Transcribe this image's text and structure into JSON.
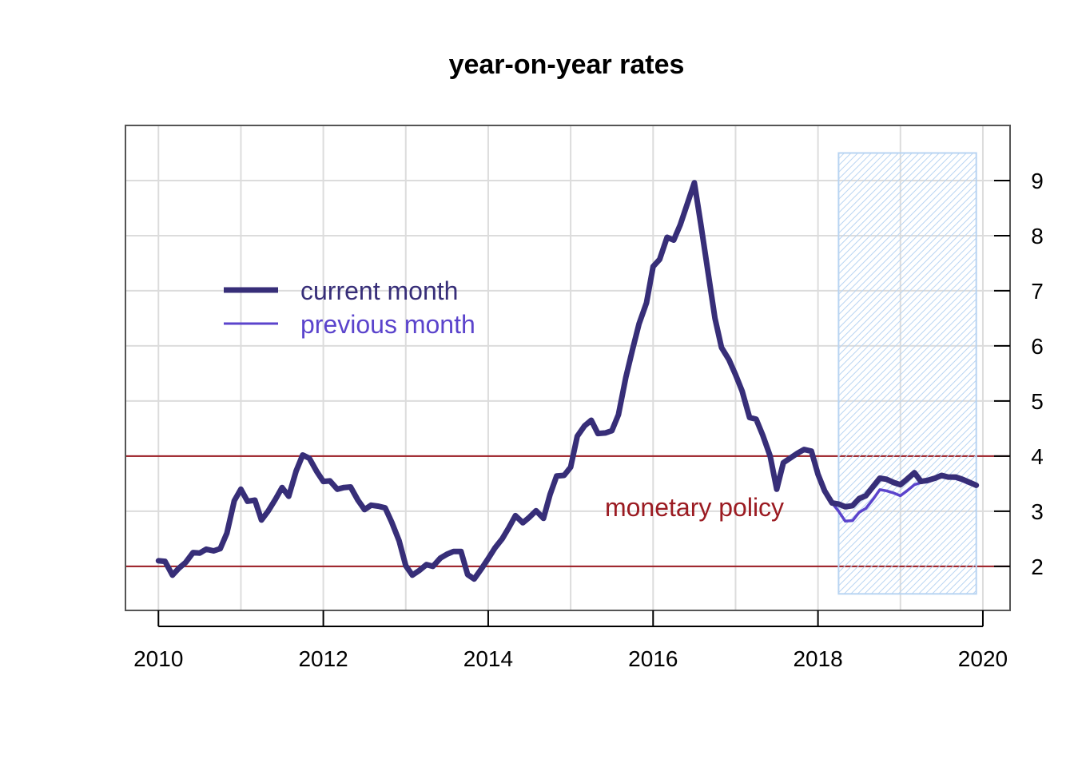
{
  "chart_data": {
    "type": "line",
    "title": "year-on-year rates",
    "xlabel": "",
    "ylabel": "",
    "x_ticks": [
      "2010",
      "2012",
      "2014",
      "2016",
      "2018",
      "2020"
    ],
    "y_ticks": [
      "2",
      "3",
      "4",
      "5",
      "6",
      "7",
      "8",
      "9"
    ],
    "xlim": [
      2009.6,
      2020.33
    ],
    "ylim": [
      1.2,
      10.0
    ],
    "grid": true,
    "y_axis_side": "right",
    "legend_position": "upper-left",
    "legend": [
      {
        "label": "current month",
        "color": "#372e78",
        "style": "thick"
      },
      {
        "label": "previous month",
        "color": "#5b44cc",
        "style": "thin"
      }
    ],
    "reference_lines": {
      "values": [
        2,
        4
      ],
      "color": "#9b1b22",
      "label": "monetary policy"
    },
    "forecast_region": {
      "x_start": 2018.25,
      "x_end": 2019.92,
      "y_start": 1.5,
      "y_end": 9.5,
      "color": "#b8d4f2"
    },
    "series": [
      {
        "name": "current month",
        "color": "#372e78",
        "points": [
          [
            2010.0,
            2.1
          ],
          [
            2010.08,
            2.09
          ],
          [
            2010.17,
            1.84
          ],
          [
            2010.25,
            1.97
          ],
          [
            2010.33,
            2.07
          ],
          [
            2010.42,
            2.25
          ],
          [
            2010.5,
            2.24
          ],
          [
            2010.58,
            2.31
          ],
          [
            2010.67,
            2.28
          ],
          [
            2010.75,
            2.32
          ],
          [
            2010.83,
            2.6
          ],
          [
            2010.92,
            3.19
          ],
          [
            2011.0,
            3.4
          ],
          [
            2011.08,
            3.18
          ],
          [
            2011.17,
            3.2
          ],
          [
            2011.25,
            2.84
          ],
          [
            2011.33,
            3.0
          ],
          [
            2011.42,
            3.22
          ],
          [
            2011.5,
            3.43
          ],
          [
            2011.58,
            3.27
          ],
          [
            2011.67,
            3.73
          ],
          [
            2011.75,
            4.02
          ],
          [
            2011.83,
            3.96
          ],
          [
            2011.92,
            3.72
          ],
          [
            2012.0,
            3.54
          ],
          [
            2012.08,
            3.55
          ],
          [
            2012.17,
            3.4
          ],
          [
            2012.25,
            3.43
          ],
          [
            2012.33,
            3.44
          ],
          [
            2012.42,
            3.2
          ],
          [
            2012.5,
            3.03
          ],
          [
            2012.58,
            3.11
          ],
          [
            2012.67,
            3.09
          ],
          [
            2012.75,
            3.06
          ],
          [
            2012.83,
            2.8
          ],
          [
            2012.92,
            2.46
          ],
          [
            2013.0,
            2.01
          ],
          [
            2013.08,
            1.84
          ],
          [
            2013.17,
            1.93
          ],
          [
            2013.25,
            2.03
          ],
          [
            2013.33,
            2.0
          ],
          [
            2013.42,
            2.15
          ],
          [
            2013.5,
            2.22
          ],
          [
            2013.58,
            2.27
          ],
          [
            2013.67,
            2.27
          ],
          [
            2013.75,
            1.85
          ],
          [
            2013.83,
            1.77
          ],
          [
            2013.92,
            1.96
          ],
          [
            2014.0,
            2.14
          ],
          [
            2014.08,
            2.33
          ],
          [
            2014.17,
            2.5
          ],
          [
            2014.25,
            2.7
          ],
          [
            2014.33,
            2.92
          ],
          [
            2014.42,
            2.79
          ],
          [
            2014.5,
            2.89
          ],
          [
            2014.58,
            3.01
          ],
          [
            2014.67,
            2.87
          ],
          [
            2014.75,
            3.3
          ],
          [
            2014.83,
            3.64
          ],
          [
            2014.92,
            3.65
          ],
          [
            2015.0,
            3.8
          ],
          [
            2015.08,
            4.36
          ],
          [
            2015.17,
            4.55
          ],
          [
            2015.25,
            4.65
          ],
          [
            2015.33,
            4.41
          ],
          [
            2015.42,
            4.42
          ],
          [
            2015.5,
            4.46
          ],
          [
            2015.58,
            4.75
          ],
          [
            2015.67,
            5.43
          ],
          [
            2015.75,
            5.93
          ],
          [
            2015.83,
            6.4
          ],
          [
            2015.92,
            6.78
          ],
          [
            2016.0,
            7.44
          ],
          [
            2016.08,
            7.57
          ],
          [
            2016.17,
            7.97
          ],
          [
            2016.25,
            7.92
          ],
          [
            2016.33,
            8.2
          ],
          [
            2016.42,
            8.6
          ],
          [
            2016.5,
            8.96
          ],
          [
            2016.58,
            8.2
          ],
          [
            2016.67,
            7.3
          ],
          [
            2016.75,
            6.5
          ],
          [
            2016.83,
            5.97
          ],
          [
            2016.92,
            5.75
          ],
          [
            2017.0,
            5.48
          ],
          [
            2017.08,
            5.18
          ],
          [
            2017.17,
            4.7
          ],
          [
            2017.25,
            4.67
          ],
          [
            2017.33,
            4.38
          ],
          [
            2017.42,
            4.0
          ],
          [
            2017.5,
            3.4
          ],
          [
            2017.58,
            3.88
          ],
          [
            2017.67,
            3.97
          ],
          [
            2017.75,
            4.05
          ],
          [
            2017.83,
            4.12
          ],
          [
            2017.92,
            4.09
          ],
          [
            2018.0,
            3.67
          ],
          [
            2018.08,
            3.37
          ],
          [
            2018.17,
            3.15
          ],
          [
            2018.25,
            3.13
          ],
          [
            2018.33,
            3.08
          ],
          [
            2018.42,
            3.1
          ],
          [
            2018.5,
            3.23
          ],
          [
            2018.58,
            3.28
          ],
          [
            2018.67,
            3.45
          ],
          [
            2018.75,
            3.6
          ],
          [
            2018.83,
            3.58
          ],
          [
            2018.92,
            3.52
          ],
          [
            2019.0,
            3.48
          ],
          [
            2019.08,
            3.58
          ],
          [
            2019.17,
            3.7
          ],
          [
            2019.25,
            3.54
          ],
          [
            2019.33,
            3.56
          ],
          [
            2019.42,
            3.6
          ],
          [
            2019.5,
            3.65
          ],
          [
            2019.58,
            3.62
          ],
          [
            2019.67,
            3.62
          ],
          [
            2019.75,
            3.58
          ],
          [
            2019.83,
            3.53
          ],
          [
            2019.92,
            3.47
          ]
        ]
      },
      {
        "name": "previous month",
        "color": "#5b44cc",
        "points": [
          [
            2018.17,
            3.15
          ],
          [
            2018.25,
            3.0
          ],
          [
            2018.33,
            2.82
          ],
          [
            2018.42,
            2.83
          ],
          [
            2018.5,
            2.98
          ],
          [
            2018.58,
            3.05
          ],
          [
            2018.67,
            3.22
          ],
          [
            2018.75,
            3.39
          ],
          [
            2018.83,
            3.37
          ],
          [
            2018.92,
            3.33
          ],
          [
            2019.0,
            3.28
          ],
          [
            2019.08,
            3.37
          ],
          [
            2019.17,
            3.48
          ],
          [
            2019.25,
            3.52
          ],
          [
            2019.33,
            3.53
          ],
          [
            2019.42,
            3.58
          ],
          [
            2019.5,
            3.62
          ],
          [
            2019.58,
            3.6
          ],
          [
            2019.67,
            3.59
          ],
          [
            2019.75,
            3.55
          ],
          [
            2019.83,
            3.5
          ],
          [
            2019.92,
            3.45
          ]
        ]
      }
    ]
  }
}
